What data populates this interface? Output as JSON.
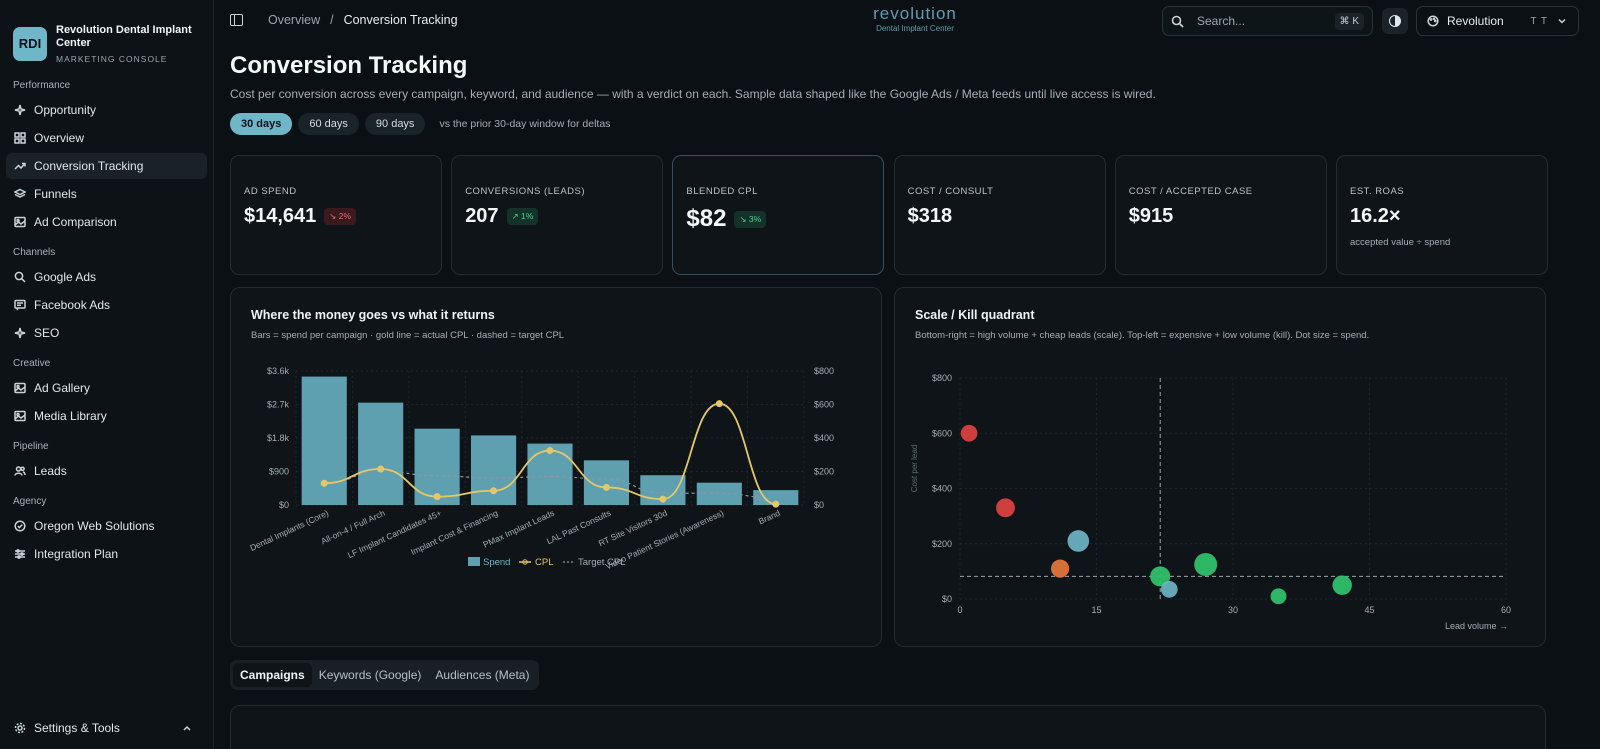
{
  "brand": {
    "logo": "RDI",
    "name": "Revolution Dental Implant Center",
    "subtitle": "MARKETING CONSOLE"
  },
  "sidebar": {
    "sections": [
      {
        "title": "Performance",
        "items": [
          {
            "label": "Opportunity",
            "icon": "sparkles-icon"
          },
          {
            "label": "Overview",
            "icon": "grid-icon"
          },
          {
            "label": "Conversion Tracking",
            "icon": "trending-up-icon",
            "active": true
          },
          {
            "label": "Funnels",
            "icon": "layers-icon"
          },
          {
            "label": "Ad Comparison",
            "icon": "image-icon"
          }
        ]
      },
      {
        "title": "Channels",
        "items": [
          {
            "label": "Google Ads",
            "icon": "search-icon"
          },
          {
            "label": "Facebook Ads",
            "icon": "message-icon"
          },
          {
            "label": "SEO",
            "icon": "sparkles-icon"
          }
        ]
      },
      {
        "title": "Creative",
        "items": [
          {
            "label": "Ad Gallery",
            "icon": "image-icon"
          },
          {
            "label": "Media Library",
            "icon": "image-icon"
          }
        ]
      },
      {
        "title": "Pipeline",
        "items": [
          {
            "label": "Leads",
            "icon": "users-icon"
          }
        ]
      },
      {
        "title": "Agency",
        "items": [
          {
            "label": "Oregon Web Solutions",
            "icon": "check-circle-icon"
          },
          {
            "label": "Integration Plan",
            "icon": "sliders-icon"
          }
        ]
      }
    ],
    "settings_label": "Settings & Tools"
  },
  "topbar": {
    "breadcrumb_root": "Overview",
    "breadcrumb_sep": "/",
    "breadcrumb_current": "Conversion Tracking",
    "logo_main": "revolution",
    "logo_sub": "Dental Implant Center",
    "search_placeholder": "Search...",
    "search_kbd": "⌘ K",
    "workspace_name": "Revolution",
    "workspace_initials": "T T"
  },
  "page": {
    "title": "Conversion Tracking",
    "subtitle": "Cost per conversion across every campaign, keyword, and audience — with a verdict on each. Sample data shaped like the Google Ads / Meta feeds until live access is wired.",
    "ranges": [
      "30 days",
      "60 days",
      "90 days"
    ],
    "active_range": "30 days",
    "range_note": "vs the prior 30-day window for deltas"
  },
  "kpis": [
    {
      "label": "AD SPEND",
      "value": "$14,641",
      "delta": "↘ 2%",
      "delta_dir": "down",
      "note": ""
    },
    {
      "label": "CONVERSIONS (LEADS)",
      "value": "207",
      "delta": "↗ 1%",
      "delta_dir": "up",
      "note": ""
    },
    {
      "label": "BLENDED CPL",
      "value": "$82",
      "delta": "↘ 3%",
      "delta_dir": "up",
      "note": ""
    },
    {
      "label": "COST / CONSULT",
      "value": "$318",
      "delta": "",
      "delta_dir": "",
      "note": ""
    },
    {
      "label": "COST / ACCEPTED CASE",
      "value": "$915",
      "delta": "",
      "delta_dir": "",
      "note": ""
    },
    {
      "label": "EST. ROAS",
      "value": "16.2×",
      "delta": "",
      "delta_dir": "",
      "note": "accepted value ÷ spend"
    }
  ],
  "colors": {
    "accent": "#6fb6c9",
    "bar": "#5e9fb0",
    "cpl_line": "#e5c76b",
    "green": "#2fbf6a",
    "red": "#d9403f",
    "orange": "#e0733a"
  },
  "chart_data": [
    {
      "type": "bar",
      "title": "Where the money goes vs what it returns",
      "subtitle": "Bars = spend per campaign · gold line = actual CPL · dashed = target CPL",
      "categories": [
        "Dental Implants (Core)",
        "All-on-4 / Full Arch",
        "LF Implant Candidates 45+",
        "Implant Cost & Financing",
        "PMax Implant Leads",
        "LAL Past Consults",
        "RT Site Visitors 30d",
        "Video Patient Stories (Awareness)",
        "Brand"
      ],
      "series": [
        {
          "name": "Spend",
          "axis": "left",
          "values": [
            3450,
            2750,
            2050,
            1870,
            1650,
            1200,
            800,
            600,
            400
          ]
        },
        {
          "name": "CPL",
          "axis": "right",
          "values": [
            130,
            215,
            50,
            85,
            325,
            105,
            35,
            605,
            5
          ]
        },
        {
          "name": "Target CPL",
          "axis": "right",
          "values": [
            130,
            200,
            175,
            160,
            170,
            155,
            70,
            70,
            40
          ]
        }
      ],
      "ylim_left": [
        0,
        3600
      ],
      "ylim_right": [
        0,
        800
      ],
      "yticks_left": [
        "$0",
        "$900",
        "$1.8k",
        "$2.7k",
        "$3.6k"
      ],
      "yticks_right": [
        "$0",
        "$200",
        "$400",
        "$600",
        "$800"
      ],
      "legend": [
        "Spend",
        "CPL",
        "Target CPL"
      ],
      "legend_position": "bottom"
    },
    {
      "type": "scatter",
      "title": "Scale / Kill quadrant",
      "subtitle": "Bottom-right = high volume + cheap leads (scale). Top-left = expensive + low volume (kill). Dot size = spend.",
      "xlabel": "Lead volume →",
      "ylabel": "Cost per lead",
      "xlim": [
        0,
        60
      ],
      "ylim": [
        0,
        800
      ],
      "xticks": [
        "0",
        "15",
        "30",
        "45",
        "60"
      ],
      "yticks": [
        "$0",
        "$200",
        "$400",
        "$600",
        "$800"
      ],
      "target_x": 22,
      "target_y": 82,
      "points": [
        {
          "x": 1,
          "y": 600,
          "size": 400,
          "color": "red"
        },
        {
          "x": 5,
          "y": 330,
          "size": 700,
          "color": "red"
        },
        {
          "x": 13,
          "y": 210,
          "size": 1200,
          "color": "blue"
        },
        {
          "x": 11,
          "y": 110,
          "size": 600,
          "color": "orange"
        },
        {
          "x": 22,
          "y": 82,
          "size": 900,
          "color": "green"
        },
        {
          "x": 23,
          "y": 35,
          "size": 400,
          "color": "blue"
        },
        {
          "x": 27,
          "y": 125,
          "size": 1500,
          "color": "green"
        },
        {
          "x": 35,
          "y": 10,
          "size": 300,
          "color": "green"
        },
        {
          "x": 42,
          "y": 50,
          "size": 800,
          "color": "green"
        }
      ]
    }
  ],
  "tabs": [
    "Campaigns",
    "Keywords (Google)",
    "Audiences (Meta)"
  ],
  "active_tab": "Campaigns"
}
